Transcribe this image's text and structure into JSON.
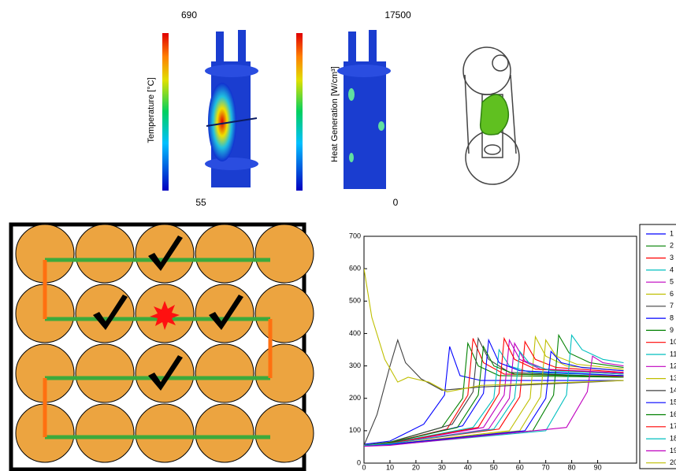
{
  "top_panel": {
    "temperature_max": "690",
    "temperature_min": "55",
    "temperature_label": "Temperature [°C]",
    "heat_max": "17500",
    "heat_min": "0",
    "heat_label": "Heat Generation [W/cm³]"
  },
  "chart_data": {
    "type": "line",
    "xlim": [
      0,
      105
    ],
    "ylim": [
      0,
      700
    ],
    "xticks": [
      0,
      10,
      20,
      30,
      40,
      50,
      60,
      70,
      80,
      90
    ],
    "yticks": [
      0,
      100,
      200,
      300,
      400,
      500,
      600,
      700
    ],
    "series": [
      {
        "name": "1",
        "color": "#0000ff",
        "x": [
          0,
          10,
          23,
          31,
          33,
          37,
          45,
          100
        ],
        "values": [
          58,
          68,
          120,
          210,
          360,
          270,
          255,
          255
        ]
      },
      {
        "name": "2",
        "color": "#008000",
        "x": [
          0,
          10,
          30,
          38,
          40,
          44,
          52,
          100
        ],
        "values": [
          55,
          65,
          110,
          200,
          370,
          300,
          270,
          265
        ]
      },
      {
        "name": "3",
        "color": "#ff0000",
        "x": [
          0,
          10,
          32,
          40,
          42,
          46,
          54,
          100
        ],
        "values": [
          55,
          63,
          105,
          210,
          385,
          310,
          275,
          268
        ]
      },
      {
        "name": "4",
        "color": "#00bfbf",
        "x": [
          0,
          10,
          42,
          50,
          52,
          56,
          64,
          100
        ],
        "values": [
          56,
          62,
          110,
          200,
          350,
          300,
          280,
          270
        ]
      },
      {
        "name": "5",
        "color": "#bf00bf",
        "x": [
          0,
          10,
          46,
          54,
          56,
          60,
          68,
          100
        ],
        "values": [
          55,
          60,
          110,
          210,
          380,
          320,
          290,
          275
        ]
      },
      {
        "name": "6",
        "color": "#bfbf00",
        "x": [
          0,
          10,
          56,
          64,
          66,
          70,
          78,
          100
        ],
        "values": [
          54,
          58,
          100,
          200,
          390,
          330,
          300,
          285
        ]
      },
      {
        "name": "7",
        "color": "#404040",
        "x": [
          0,
          10,
          34,
          42,
          44,
          48,
          56,
          100
        ],
        "values": [
          56,
          64,
          120,
          220,
          385,
          320,
          280,
          265
        ]
      },
      {
        "name": "8",
        "color": "#0000ff",
        "x": [
          0,
          10,
          38,
          46,
          48,
          52,
          60,
          100
        ],
        "values": [
          55,
          62,
          115,
          215,
          380,
          310,
          285,
          270
        ]
      },
      {
        "name": "9",
        "color": "#008000",
        "x": [
          0,
          10,
          65,
          73,
          75,
          79,
          87,
          100
        ],
        "values": [
          53,
          57,
          100,
          210,
          395,
          340,
          310,
          295
        ]
      },
      {
        "name": "10",
        "color": "#ff0000",
        "x": [
          0,
          10,
          52,
          60,
          62,
          66,
          74,
          100
        ],
        "values": [
          55,
          60,
          105,
          205,
          375,
          320,
          295,
          280
        ]
      },
      {
        "name": "11",
        "color": "#00bfbf",
        "x": [
          0,
          10,
          70,
          78,
          80,
          84,
          92,
          100
        ],
        "values": [
          52,
          56,
          100,
          210,
          395,
          350,
          320,
          310
        ]
      },
      {
        "name": "12",
        "color": "#bf00bf",
        "x": [
          0,
          10,
          48,
          56,
          58,
          62,
          70,
          100
        ],
        "values": [
          55,
          60,
          105,
          200,
          370,
          315,
          290,
          278
        ]
      },
      {
        "name": "13",
        "color": "#bfbf00",
        "x": [
          0,
          10,
          60,
          68,
          70,
          74,
          82,
          100
        ],
        "values": [
          54,
          58,
          100,
          205,
          380,
          330,
          305,
          290
        ]
      },
      {
        "name": "14",
        "color": "#404040",
        "x": [
          0,
          5,
          10,
          13,
          16,
          22,
          30,
          45,
          100
        ],
        "values": [
          55,
          150,
          300,
          380,
          310,
          260,
          225,
          235,
          255
        ]
      },
      {
        "name": "15",
        "color": "#0000ff",
        "x": [
          0,
          10,
          62,
          70,
          72,
          76,
          84,
          100
        ],
        "values": [
          54,
          58,
          100,
          200,
          345,
          310,
          295,
          285
        ]
      },
      {
        "name": "16",
        "color": "#008000",
        "x": [
          0,
          10,
          36,
          44,
          46,
          50,
          58,
          100
        ],
        "values": [
          55,
          63,
          110,
          210,
          360,
          300,
          275,
          265
        ]
      },
      {
        "name": "17",
        "color": "#ff0000",
        "x": [
          0,
          10,
          44,
          52,
          54,
          58,
          66,
          100
        ],
        "values": [
          55,
          61,
          110,
          215,
          385,
          320,
          290,
          275
        ]
      },
      {
        "name": "18",
        "color": "#00bfbf",
        "x": [
          0,
          10,
          50,
          58,
          60,
          64,
          72,
          100
        ],
        "values": [
          55,
          60,
          105,
          200,
          345,
          305,
          285,
          275
        ]
      },
      {
        "name": "19",
        "color": "#bf00bf",
        "x": [
          0,
          10,
          78,
          86,
          88,
          92,
          100
        ],
        "values": [
          52,
          55,
          110,
          220,
          330,
          310,
          300
        ]
      },
      {
        "name": "20",
        "color": "#bfbf00",
        "x": [
          0,
          3,
          8,
          13,
          17,
          25,
          32,
          45,
          100
        ],
        "values": [
          600,
          450,
          320,
          250,
          265,
          250,
          220,
          240,
          255
        ]
      }
    ]
  }
}
